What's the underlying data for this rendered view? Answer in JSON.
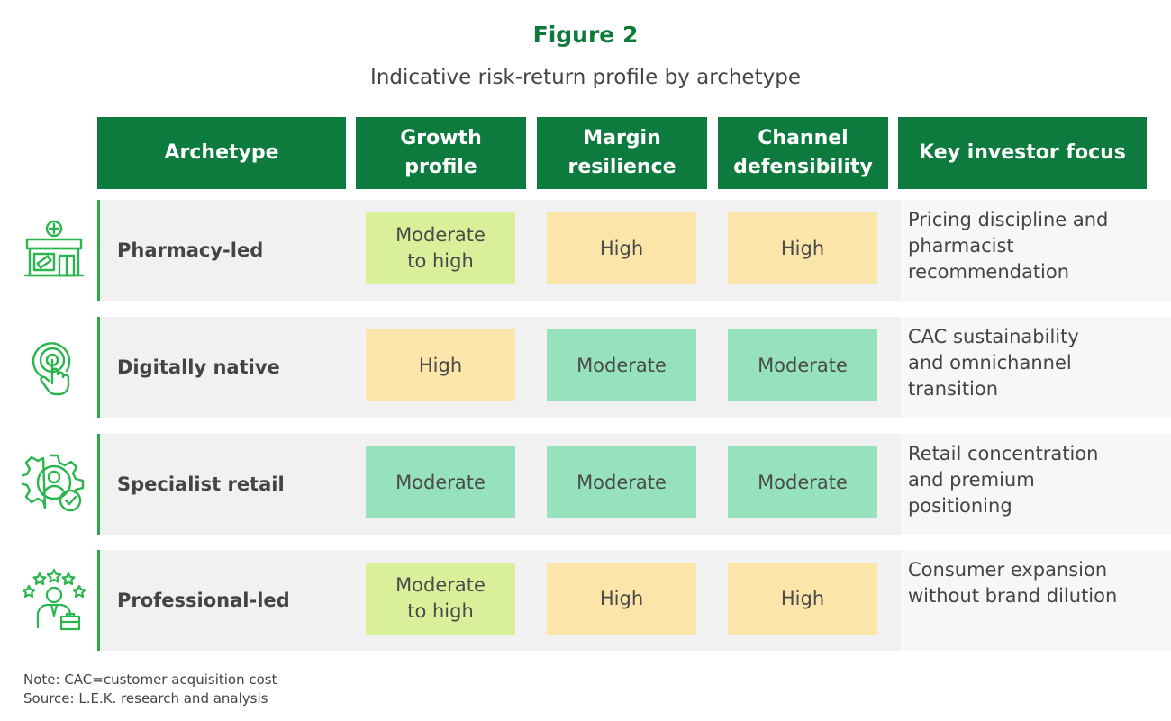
{
  "title": "Figure 2",
  "subtitle": "Indicative risk-return profile by archetype",
  "colors": {
    "header_bg": "#0d7a3e",
    "title": "#0b7a3a",
    "moderate_to_high": "#d9ef9a",
    "high": "#fce5a8",
    "moderate": "#96e2bd",
    "icon": "#2ab54e"
  },
  "headers": {
    "archetype": "Archetype",
    "growth_l1": "Growth",
    "growth_l2": "profile",
    "margin_l1": "Margin",
    "margin_l2": "resilience",
    "channel_l1": "Channel",
    "channel_l2": "defensibility",
    "focus": "Key investor focus"
  },
  "chart_data": {
    "type": "table",
    "columns": [
      "Archetype",
      "Growth profile",
      "Margin resilience",
      "Channel defensibility",
      "Key investor focus"
    ],
    "rows": [
      {
        "icon": "pharmacy-store-icon",
        "archetype": "Pharmacy-led",
        "growth_l1": "Moderate",
        "growth_l2": "to high",
        "growth_level": "moderate_to_high",
        "margin": "High",
        "margin_level": "high",
        "channel": "High",
        "channel_level": "high",
        "focus_l1": "Pricing discipline and",
        "focus_l2": "pharmacist",
        "focus_l3": "recommendation"
      },
      {
        "icon": "touch-tap-icon",
        "archetype": "Digitally native",
        "growth_l1": "High",
        "growth_l2": "",
        "growth_level": "high",
        "margin": "Moderate",
        "margin_level": "moderate",
        "channel": "Moderate",
        "channel_level": "moderate",
        "focus_l1": "CAC sustainability",
        "focus_l2": "and omnichannel",
        "focus_l3": "transition"
      },
      {
        "icon": "gear-person-check-icon",
        "archetype": "Specialist retail",
        "growth_l1": "Moderate",
        "growth_l2": "",
        "growth_level": "moderate",
        "margin": "Moderate",
        "margin_level": "moderate",
        "channel": "Moderate",
        "channel_level": "moderate",
        "focus_l1": "Retail concentration",
        "focus_l2": "and premium",
        "focus_l3": "positioning"
      },
      {
        "icon": "professional-stars-icon",
        "archetype": "Professional-led",
        "growth_l1": "Moderate",
        "growth_l2": "to high",
        "growth_level": "moderate_to_high",
        "margin": "High",
        "margin_level": "high",
        "channel": "High",
        "channel_level": "high",
        "focus_l1": "Consumer expansion",
        "focus_l2": "without brand dilution",
        "focus_l3": ""
      }
    ]
  },
  "notes": {
    "note": "Note: CAC=customer acquisition cost",
    "source": "Source: L.E.K. research and analysis"
  }
}
